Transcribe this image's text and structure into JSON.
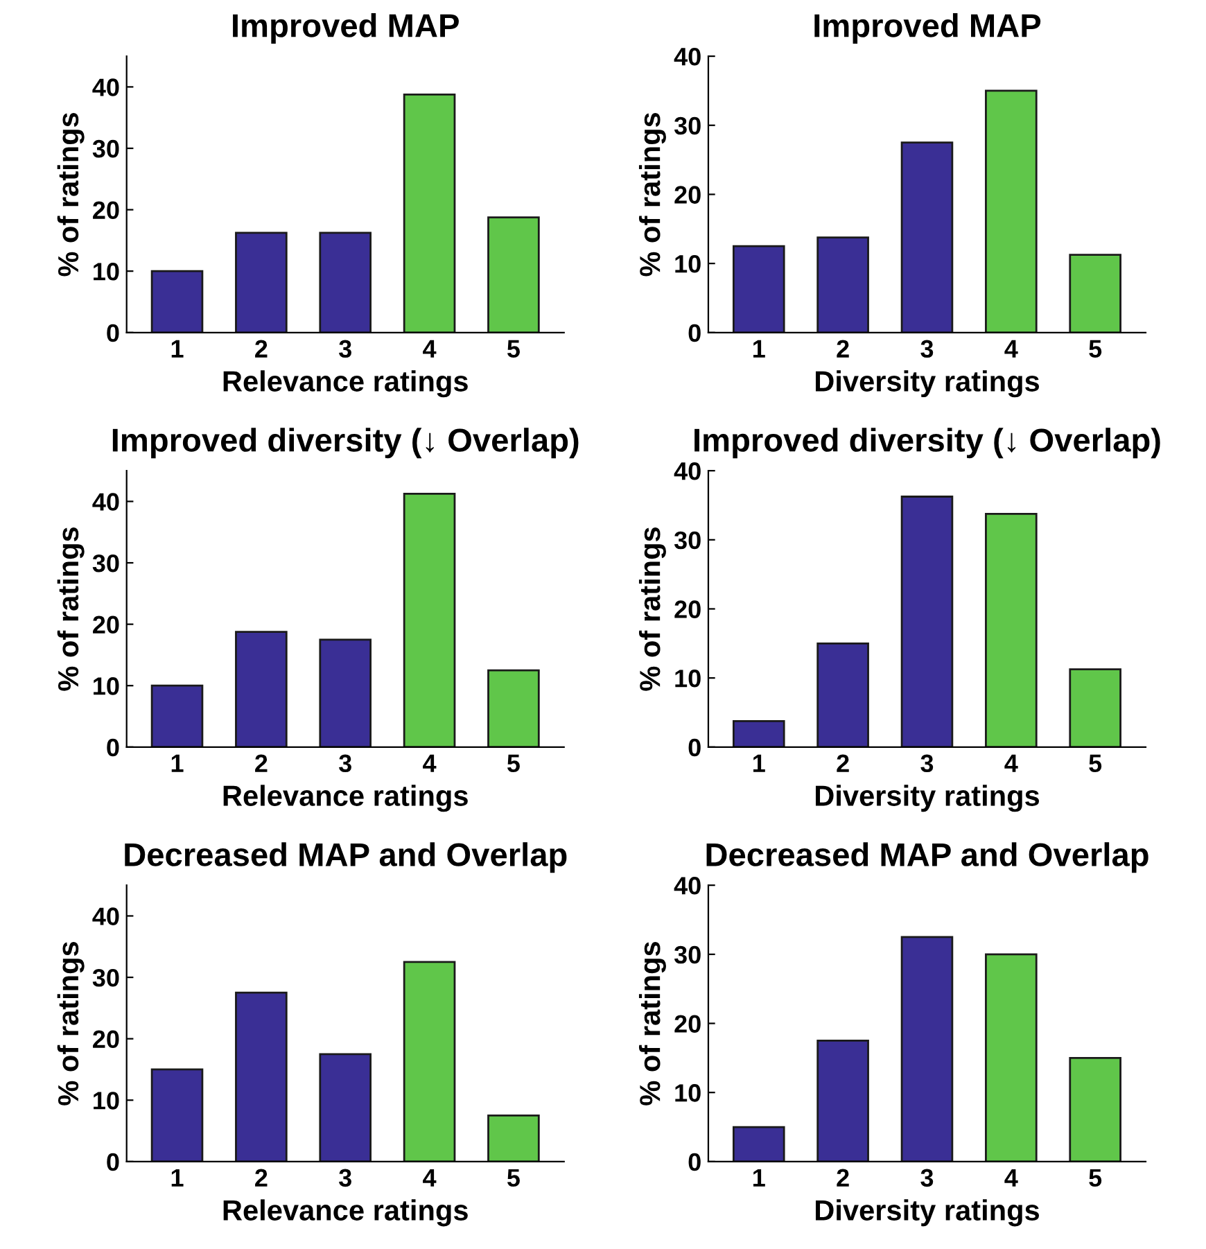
{
  "chart_data": [
    {
      "type": "bar",
      "title": "Improved MAP",
      "xlabel": "Relevance ratings",
      "ylabel": "% of ratings",
      "categories": [
        "1",
        "2",
        "3",
        "4",
        "5"
      ],
      "values": [
        10,
        16.25,
        16.25,
        38.75,
        18.75
      ],
      "colors": [
        "#3a2f95",
        "#3a2f95",
        "#3a2f95",
        "#60c64a",
        "#60c64a"
      ],
      "ylim": [
        0,
        45
      ],
      "yticks": [
        0,
        10,
        20,
        30,
        40
      ],
      "grid": false
    },
    {
      "type": "bar",
      "title": "Improved MAP",
      "xlabel": "Diversity ratings",
      "ylabel": "% of ratings",
      "categories": [
        "1",
        "2",
        "3",
        "4",
        "5"
      ],
      "values": [
        12.5,
        13.75,
        27.5,
        35,
        11.25
      ],
      "colors": [
        "#3a2f95",
        "#3a2f95",
        "#3a2f95",
        "#60c64a",
        "#60c64a"
      ],
      "ylim": [
        0,
        40
      ],
      "yticks": [
        0,
        10,
        20,
        30,
        40
      ],
      "grid": false
    },
    {
      "type": "bar",
      "title": "Improved diversity (↓ Overlap)",
      "xlabel": "Relevance ratings",
      "ylabel": "% of ratings",
      "categories": [
        "1",
        "2",
        "3",
        "4",
        "5"
      ],
      "values": [
        10,
        18.75,
        17.5,
        41.25,
        12.5
      ],
      "colors": [
        "#3a2f95",
        "#3a2f95",
        "#3a2f95",
        "#60c64a",
        "#60c64a"
      ],
      "ylim": [
        0,
        45
      ],
      "yticks": [
        0,
        10,
        20,
        30,
        40
      ],
      "grid": false
    },
    {
      "type": "bar",
      "title": "Improved diversity (↓ Overlap)",
      "xlabel": "Diversity ratings",
      "ylabel": "% of ratings",
      "categories": [
        "1",
        "2",
        "3",
        "4",
        "5"
      ],
      "values": [
        3.75,
        15,
        36.25,
        33.75,
        11.25
      ],
      "colors": [
        "#3a2f95",
        "#3a2f95",
        "#3a2f95",
        "#60c64a",
        "#60c64a"
      ],
      "ylim": [
        0,
        40
      ],
      "yticks": [
        0,
        10,
        20,
        30,
        40
      ],
      "grid": false
    },
    {
      "type": "bar",
      "title": "Decreased MAP and Overlap",
      "xlabel": "Relevance ratings",
      "ylabel": "% of ratings",
      "categories": [
        "1",
        "2",
        "3",
        "4",
        "5"
      ],
      "values": [
        15,
        27.5,
        17.5,
        32.5,
        7.5
      ],
      "colors": [
        "#3a2f95",
        "#3a2f95",
        "#3a2f95",
        "#60c64a",
        "#60c64a"
      ],
      "ylim": [
        0,
        45
      ],
      "yticks": [
        0,
        10,
        20,
        30,
        40
      ],
      "grid": false
    },
    {
      "type": "bar",
      "title": "Decreased MAP and Overlap",
      "xlabel": "Diversity ratings",
      "ylabel": "% of ratings",
      "categories": [
        "1",
        "2",
        "3",
        "4",
        "5"
      ],
      "values": [
        5,
        17.5,
        32.5,
        30,
        15
      ],
      "colors": [
        "#3a2f95",
        "#3a2f95",
        "#3a2f95",
        "#60c64a",
        "#60c64a"
      ],
      "ylim": [
        0,
        40
      ],
      "yticks": [
        0,
        10,
        20,
        30,
        40
      ],
      "grid": false
    }
  ]
}
